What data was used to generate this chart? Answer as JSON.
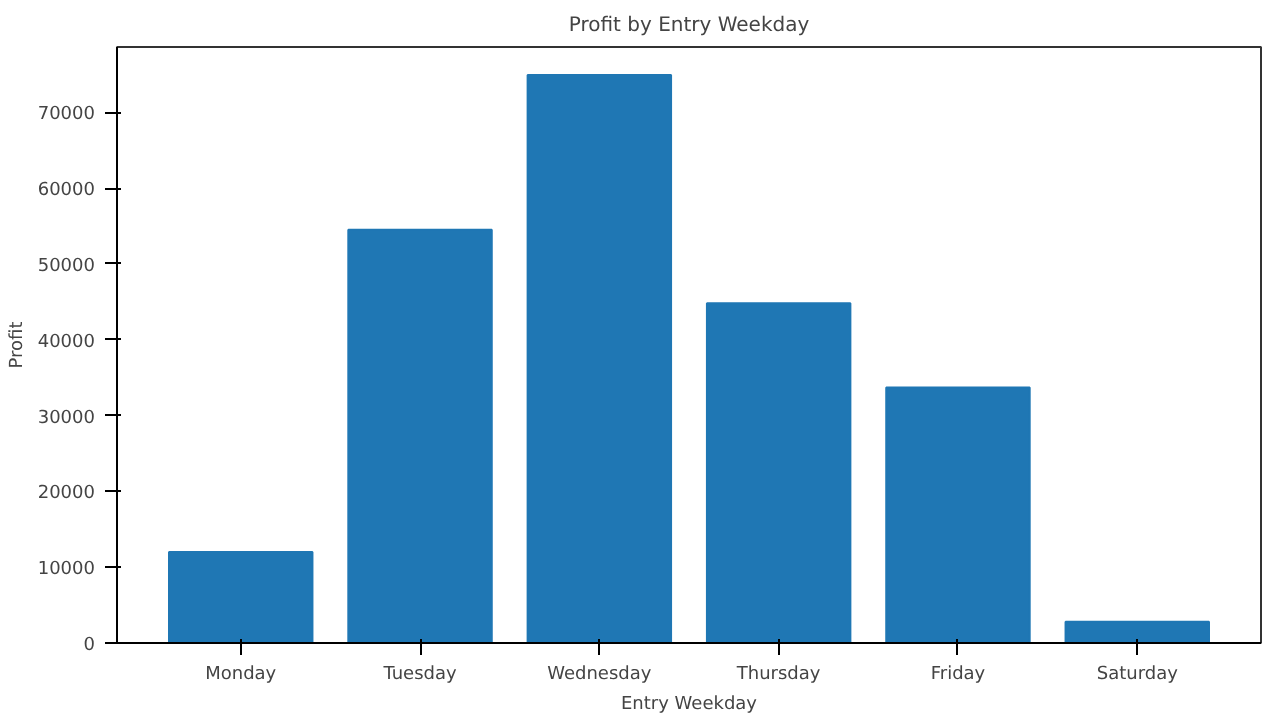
{
  "chart_data": {
    "type": "bar",
    "title": "Profit by Entry Weekday",
    "xlabel": "Entry Weekday",
    "ylabel": "Profit",
    "categories": [
      "Monday",
      "Tuesday",
      "Wednesday",
      "Thursday",
      "Friday",
      "Saturday"
    ],
    "values": [
      12000,
      54500,
      74900,
      44800,
      33700,
      2800
    ],
    "color": "#1f77b4",
    "ylim": [
      0,
      78600
    ],
    "yticks": [
      0,
      10000,
      20000,
      30000,
      40000,
      50000,
      60000,
      70000
    ],
    "grid": false
  }
}
